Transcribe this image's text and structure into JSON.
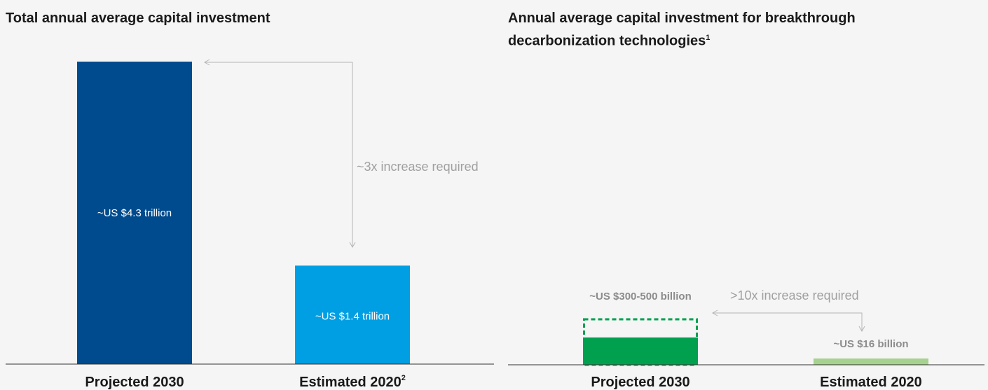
{
  "chart_data": [
    {
      "type": "bar",
      "title": "Total annual average capital investment",
      "categories": [
        "Projected 2030",
        "Estimated 2020"
      ],
      "category_footnotes": [
        "",
        "2"
      ],
      "values": [
        4.3,
        1.4
      ],
      "unit": "US$ trillion",
      "data_labels": [
        "~US $4.3 trillion",
        "~US $1.4 trillion"
      ],
      "bar_colors": [
        "#004b8d",
        "#009fe3"
      ],
      "annotation": "~3x increase required",
      "ylim": [
        0,
        4.3
      ],
      "grid": false
    },
    {
      "type": "bar",
      "title": "Annual average capital investment for breakthrough decarbonization technologies",
      "title_footnote": "1",
      "categories": [
        "Projected 2030",
        "Estimated 2020"
      ],
      "values": [
        300,
        16
      ],
      "range_high": 500,
      "unit": "US$ billion",
      "data_labels": [
        "~US $300-500 billion",
        "~US $16 billion"
      ],
      "bar_colors": [
        "#00a04f",
        "#a6d18e"
      ],
      "range_outline_color": "#00a04f",
      "annotation": ">10x increase required",
      "ylim": [
        0,
        500
      ],
      "grid": false
    }
  ]
}
